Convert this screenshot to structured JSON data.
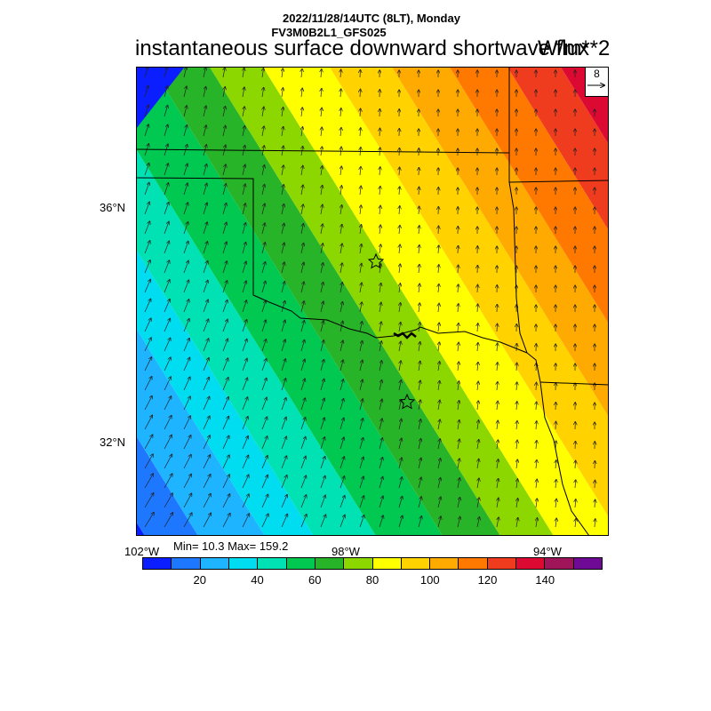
{
  "header": {
    "line1": "2022/11/28/14UTC (8LT), Monday",
    "line2": "FV3M0B2L1_GFS025",
    "title": "instantaneous surface downward shortwave flux",
    "units": "W/m**2"
  },
  "reference_vector": {
    "label": "8"
  },
  "axes": {
    "lat_labels": [
      "36°N",
      "32°N"
    ],
    "lon_labels": [
      "102°W",
      "98°W",
      "94°W"
    ]
  },
  "stats": {
    "text": "Min= 10.3 Max= 159.2"
  },
  "colorbar": {
    "colors": [
      "#0a1eff",
      "#1e78ff",
      "#1eb4ff",
      "#00dcf0",
      "#00e1b4",
      "#00c850",
      "#28b428",
      "#8cd700",
      "#ffff00",
      "#ffd200",
      "#ffaa00",
      "#ff7800",
      "#f03c1e",
      "#dc0a32",
      "#a0145a",
      "#6e0a96"
    ],
    "labels": [
      "20",
      "40",
      "60",
      "80",
      "100",
      "120",
      "140"
    ]
  },
  "map_data": {
    "field": "instantaneous surface downward shortwave flux",
    "units": "W/m**2",
    "min": 10.3,
    "max": 159.2,
    "markers": [
      "star",
      "star"
    ]
  }
}
